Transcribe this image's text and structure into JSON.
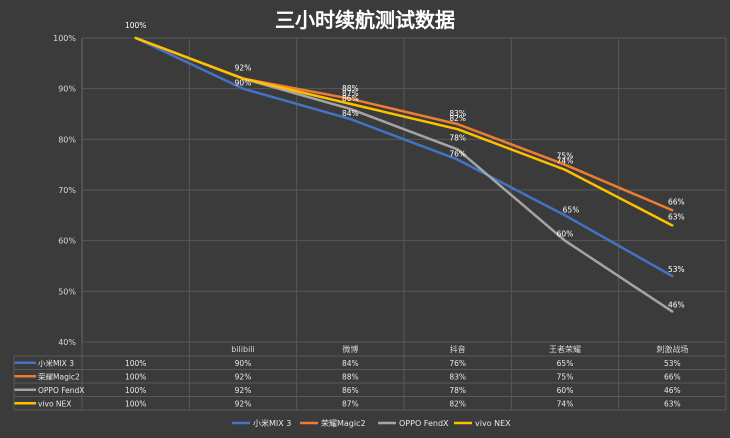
{
  "chart_data": {
    "type": "line",
    "title": "三小时续航测试数据",
    "categories": [
      "",
      "bilibili",
      "微博",
      "抖音",
      "王者荣耀",
      "刺激战场"
    ],
    "yticks": [
      "100%",
      "90%",
      "80%",
      "70%",
      "60%",
      "50%",
      "40%"
    ],
    "ylim": [
      40,
      100
    ],
    "grid": true,
    "legend_position": "bottom",
    "series": [
      {
        "name": "小米MIX 3",
        "color": "#4472c4",
        "values": [
          100,
          90,
          84,
          76,
          65,
          53
        ],
        "labels": [
          "",
          "90%",
          "84%",
          "76%",
          "65%",
          "53%"
        ]
      },
      {
        "name": "荣耀Magic2",
        "color": "#ed7d31",
        "values": [
          100,
          92,
          88,
          83,
          75,
          66
        ],
        "labels": [
          "",
          "92%",
          "88%",
          "83%",
          "75%",
          "66%"
        ]
      },
      {
        "name": "OPPO FendX",
        "color": "#a5a5a5",
        "values": [
          100,
          92,
          86,
          78,
          60,
          46
        ],
        "labels": [
          "",
          "",
          "86%",
          "78%",
          "60%",
          "46%"
        ]
      },
      {
        "name": "vivo NEX",
        "color": "#ffc000",
        "values": [
          100,
          92,
          87,
          82,
          74,
          63
        ],
        "labels": [
          "100%",
          "",
          "87%",
          "82%",
          "74%",
          "63%"
        ]
      }
    ],
    "table": [
      [
        "100%",
        "90%",
        "84%",
        "76%",
        "65%",
        "53%"
      ],
      [
        "100%",
        "92%",
        "88%",
        "83%",
        "75%",
        "66%"
      ],
      [
        "100%",
        "92%",
        "86%",
        "78%",
        "60%",
        "46%"
      ],
      [
        "100%",
        "92%",
        "87%",
        "82%",
        "74%",
        "63%"
      ]
    ]
  }
}
